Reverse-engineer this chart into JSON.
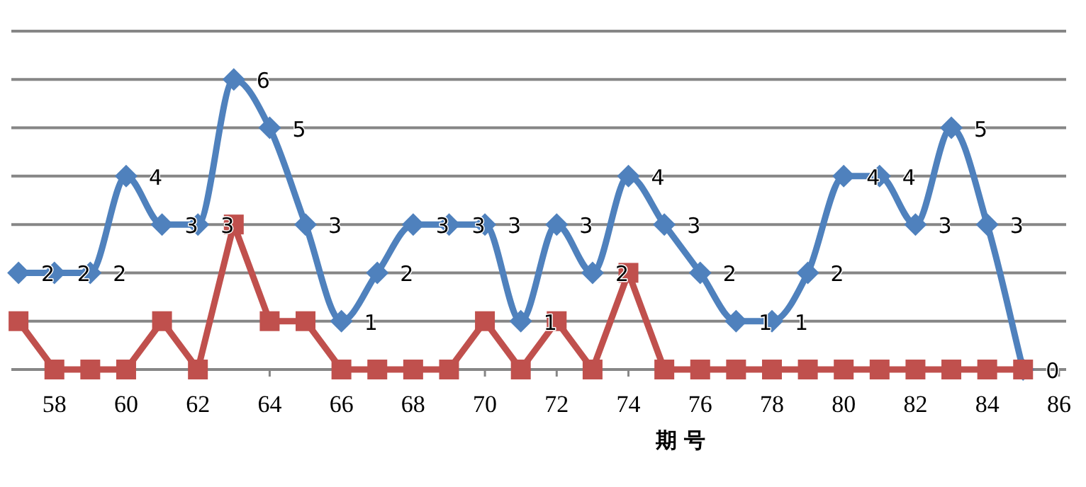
{
  "chart_data": {
    "type": "line",
    "xlabel": "期 号",
    "x": [
      57,
      58,
      59,
      60,
      61,
      62,
      63,
      64,
      65,
      66,
      67,
      68,
      69,
      70,
      71,
      72,
      73,
      74,
      75,
      76,
      77,
      78,
      79,
      80,
      81,
      82,
      83,
      84,
      85
    ],
    "xlim": [
      56.8,
      86.2
    ],
    "xticks": [
      58,
      60,
      62,
      64,
      66,
      68,
      70,
      72,
      74,
      76,
      78,
      80,
      82,
      84,
      86
    ],
    "ylim": [
      0,
      7
    ],
    "yticks": [
      {
        "value": 0,
        "label": null
      },
      {
        "value": 1,
        "label": null
      },
      {
        "value": 2,
        "label": null
      },
      {
        "value": 3,
        "label": null
      },
      {
        "value": 4,
        "label": null
      },
      {
        "value": 5,
        "label": null
      },
      {
        "value": 6,
        "label": null
      },
      {
        "value": 7,
        "label": null
      }
    ],
    "grid": "y",
    "tick_labels": "x",
    "series": [
      {
        "color": "#4f81bd",
        "marker": "diamond",
        "values": [
          2,
          2,
          2,
          4,
          3,
          3,
          6,
          5,
          3,
          1,
          2,
          3,
          3,
          3,
          1,
          3,
          2,
          4,
          3,
          2,
          1,
          1,
          2,
          4,
          4,
          3,
          5,
          3,
          0
        ],
        "value_labels": [
          "2",
          "2",
          "2",
          "4",
          "3",
          "3",
          "6",
          "5",
          "3",
          "1",
          "2",
          "3",
          "3",
          "3",
          "1",
          "3",
          "2",
          "4",
          "3",
          "2",
          "1",
          "1",
          "2",
          "4",
          "4",
          "3",
          "5",
          "3",
          "0"
        ]
      },
      {
        "color": "#c0504d",
        "marker": "square",
        "values": [
          1,
          0,
          0,
          0,
          1,
          0,
          3,
          1,
          1,
          0,
          0,
          0,
          0,
          1,
          0,
          1,
          0,
          2,
          0,
          0,
          0,
          0,
          0,
          0,
          0,
          0,
          0,
          0,
          0
        ]
      }
    ]
  }
}
